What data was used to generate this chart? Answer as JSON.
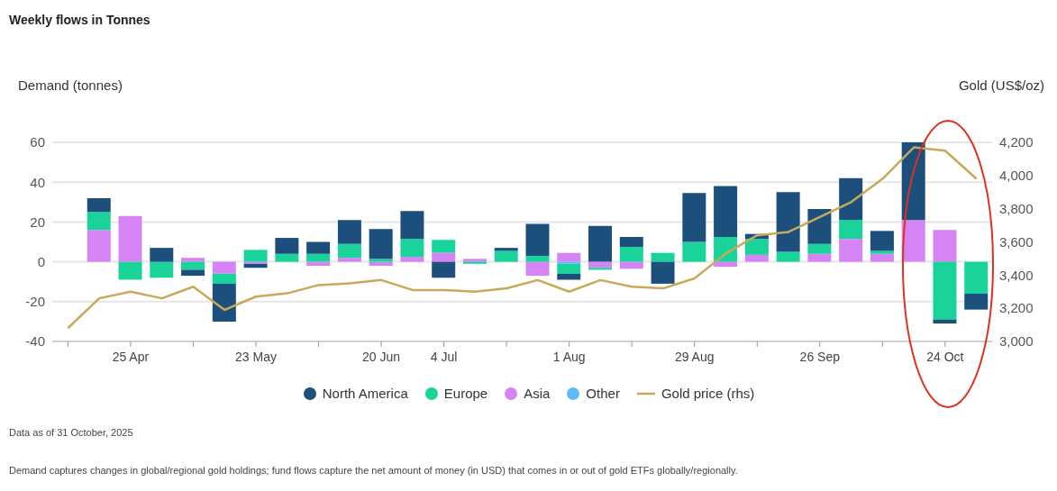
{
  "chart_data": {
    "type": "bar",
    "title": "Weekly flows in Tonnes",
    "ylabel": "Demand (tonnes)",
    "y2label": "Gold (US$/oz)",
    "categories": [
      null,
      null,
      "25 Apr",
      null,
      null,
      null,
      "23 May",
      null,
      null,
      null,
      "20 Jun",
      null,
      "4 Jul",
      null,
      null,
      null,
      "1 Aug",
      null,
      null,
      null,
      "29 Aug",
      null,
      null,
      null,
      "26 Sep",
      null,
      null,
      null,
      "24 Oct",
      null
    ],
    "stacked": true,
    "series": [
      {
        "name": "Other",
        "color": "#5bbcf5",
        "values": [
          null,
          null,
          null,
          null,
          null,
          null,
          null,
          null,
          null,
          null,
          null,
          null,
          null,
          null,
          null,
          null,
          -1,
          null,
          null,
          null,
          null,
          null,
          null,
          null,
          null,
          null,
          null,
          null,
          null,
          null
        ]
      },
      {
        "name": "Asia",
        "color": "#d684f5",
        "values": [
          null,
          16,
          23,
          0,
          2,
          -6,
          -1,
          0,
          -2,
          2,
          -2,
          2.5,
          4.5,
          1.5,
          0,
          -7,
          4.5,
          -3,
          -3.5,
          0,
          0,
          -2.5,
          3.5,
          0,
          4,
          11.5,
          4,
          21,
          16,
          null
        ]
      },
      {
        "name": "Europe",
        "color": "#19d39a",
        "values": [
          null,
          9,
          -9,
          -8,
          -4,
          -5,
          6,
          4,
          4,
          7,
          1.5,
          9,
          6.5,
          -1,
          5.5,
          3,
          -5,
          -1,
          7.5,
          4.5,
          10,
          12.5,
          8,
          5,
          5,
          9.5,
          1.5,
          0,
          -29,
          -16
        ]
      },
      {
        "name": "North America",
        "color": "#1d4f7c",
        "values": [
          null,
          7,
          0,
          7,
          -3,
          -19,
          -2,
          8,
          6,
          12,
          15,
          14,
          -8,
          0,
          1.5,
          16,
          -3,
          18,
          5,
          -11,
          24.5,
          25.5,
          2.5,
          30,
          17.5,
          21,
          10,
          39,
          -2,
          -8
        ]
      },
      {
        "name": "Gold price (rhs)",
        "type": "line",
        "axis": "y2",
        "color": "#c8a95a",
        "values": [
          3080,
          3260,
          3300,
          3260,
          3330,
          3190,
          3270,
          3290,
          3340,
          3350,
          3370,
          3310,
          3310,
          3300,
          3320,
          3370,
          3300,
          3370,
          3330,
          3320,
          3380,
          3530,
          3640,
          3660,
          3750,
          3840,
          3980,
          4170,
          4150,
          3980
        ]
      }
    ],
    "ylim": [
      -40,
      60
    ],
    "yticks": [
      -40,
      -20,
      0,
      20,
      40,
      60
    ],
    "y2lim": [
      3000,
      4200
    ],
    "y2ticks": [
      {
        "value": 3000,
        "label": "3,000"
      },
      {
        "value": 3200,
        "label": "3,200"
      },
      {
        "value": 3400,
        "label": "3,400"
      },
      {
        "value": 3600,
        "label": "3,600"
      },
      {
        "value": 3800,
        "label": "3,800"
      },
      {
        "value": 4000,
        "label": "4,000"
      },
      {
        "value": 4200,
        "label": "4,200"
      }
    ],
    "grid": "y",
    "legend": "bottom",
    "annotations": [
      "Data as of 31 October, 2025",
      "Demand captures changes in global/regional gold holdings; fund flows capture the net amount of money (in USD) that comes in or out of gold ETFs globally/regionally."
    ]
  }
}
